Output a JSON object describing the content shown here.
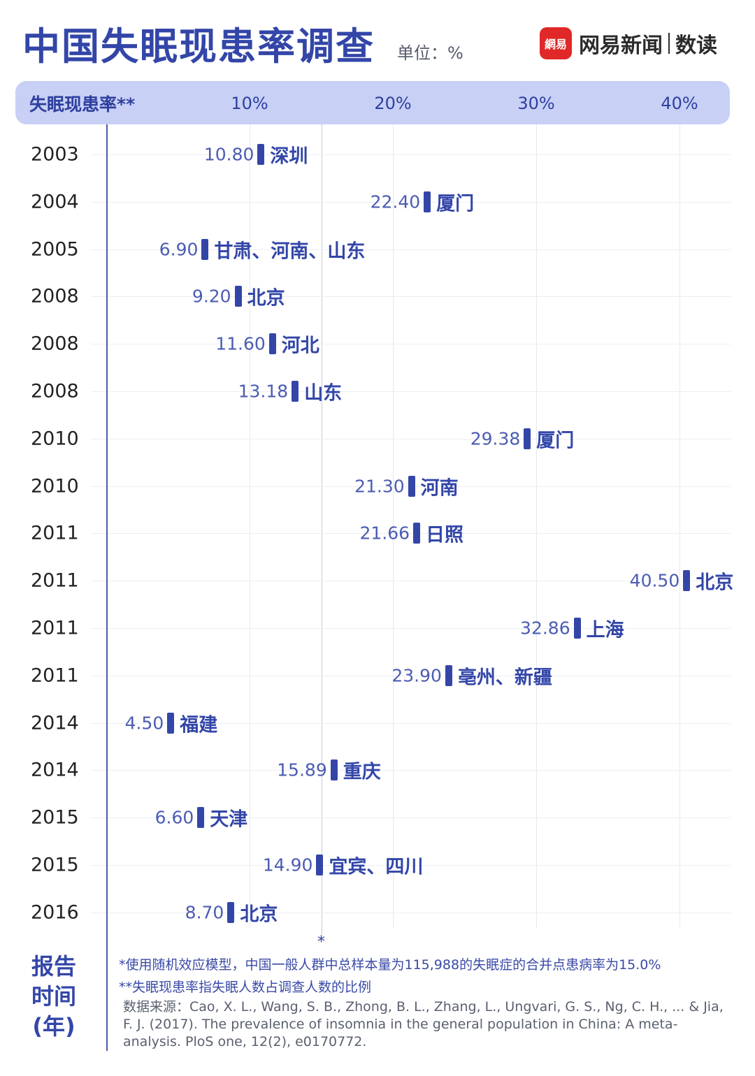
{
  "header": {
    "title": "中国失眠现患率调查",
    "unit": "单位：%",
    "brand_name": "网易新闻",
    "brand_sub": "数读",
    "brand_logo_text": "網易",
    "brand_color": "#e02828"
  },
  "chart_data": {
    "type": "dot",
    "title": "中国失眠现患率调查",
    "xlabel": "失眠现患率**",
    "ylabel": "报告时间(年)",
    "xlim": [
      0,
      42
    ],
    "x_ticks": [
      10,
      20,
      30,
      40
    ],
    "x_tick_labels": [
      "10%",
      "20%",
      "30%",
      "40%"
    ],
    "reference_value": 15.0,
    "reference_marker": "*",
    "grid": true,
    "accent_color": "#3346a8",
    "rows": [
      {
        "year": "2003",
        "value": 10.8,
        "value_label": "10.80",
        "place": "深圳"
      },
      {
        "year": "2004",
        "value": 22.4,
        "value_label": "22.40",
        "place": "厦门"
      },
      {
        "year": "2005",
        "value": 6.9,
        "value_label": "6.90",
        "place": "甘肃、河南、山东"
      },
      {
        "year": "2008",
        "value": 9.2,
        "value_label": "9.20",
        "place": "北京"
      },
      {
        "year": "2008",
        "value": 11.6,
        "value_label": "11.60",
        "place": "河北"
      },
      {
        "year": "2008",
        "value": 13.18,
        "value_label": "13.18",
        "place": "山东"
      },
      {
        "year": "2010",
        "value": 29.38,
        "value_label": "29.38",
        "place": "厦门"
      },
      {
        "year": "2010",
        "value": 21.3,
        "value_label": "21.30",
        "place": "河南"
      },
      {
        "year": "2011",
        "value": 21.66,
        "value_label": "21.66",
        "place": "日照"
      },
      {
        "year": "2011",
        "value": 40.5,
        "value_label": "40.50",
        "place": "北京"
      },
      {
        "year": "2011",
        "value": 32.86,
        "value_label": "32.86",
        "place": "上海"
      },
      {
        "year": "2011",
        "value": 23.9,
        "value_label": "23.90",
        "place": "亳州、新疆"
      },
      {
        "year": "2014",
        "value": 4.5,
        "value_label": "4.50",
        "place": "福建"
      },
      {
        "year": "2014",
        "value": 15.89,
        "value_label": "15.89",
        "place": "重庆"
      },
      {
        "year": "2015",
        "value": 6.6,
        "value_label": "6.60",
        "place": "天津"
      },
      {
        "year": "2015",
        "value": 14.9,
        "value_label": "14.90",
        "place": "宜宾、四川"
      },
      {
        "year": "2016",
        "value": 8.7,
        "value_label": "8.70",
        "place": "北京"
      }
    ]
  },
  "ylabel_lines": [
    "报告",
    "时间",
    "(年)"
  ],
  "notes": {
    "note1": "*使用随机效应模型，中国一般人群中总样本量为115,988的失眠症的合并点患病率为15.0%",
    "note2": "**失眠现患率指失眠人数占调查人数的比例",
    "source": "数据来源：Cao, X. L., Wang, S. B., Zhong, B. L., Zhang, L., Ungvari, G. S., Ng, C. H., ... & Jia, F. J. (2017). The prevalence of insomnia in the general population in China: A meta-analysis. PloS one, 12(2), e0170772."
  }
}
